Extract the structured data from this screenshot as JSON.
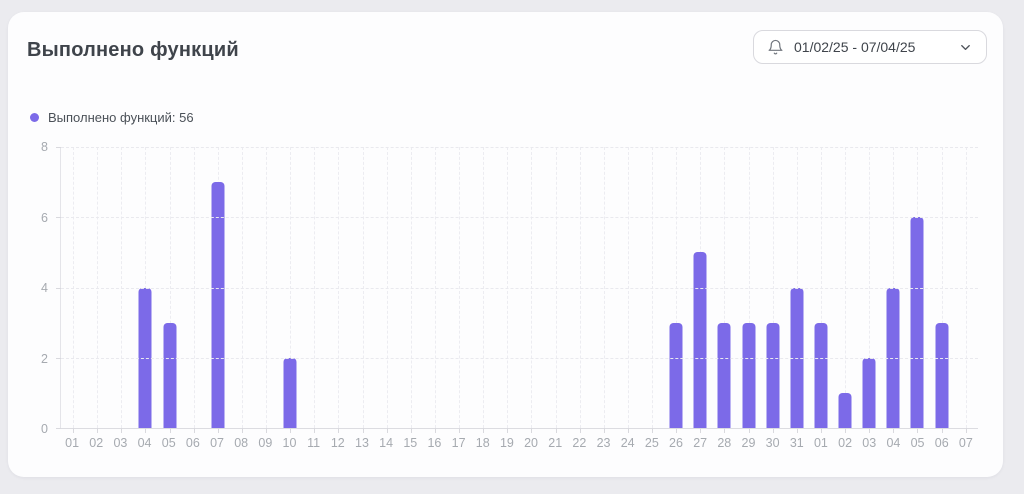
{
  "card": {
    "title": "Выполнено функций",
    "date_picker": {
      "value": "01/02/25 - 07/04/25",
      "icon": "bell-icon",
      "chevron": "chevron-down-icon"
    }
  },
  "legend": {
    "label": "Выполнено функций: 56",
    "dot_color": "#7c6ae8"
  },
  "chart_data": {
    "type": "bar",
    "title": "Выполнено функций",
    "series_name": "Выполнено функций",
    "total": 56,
    "categories": [
      "01",
      "02",
      "03",
      "04",
      "05",
      "06",
      "07",
      "08",
      "09",
      "10",
      "11",
      "12",
      "13",
      "14",
      "15",
      "16",
      "17",
      "18",
      "19",
      "20",
      "21",
      "22",
      "23",
      "24",
      "25",
      "26",
      "27",
      "28",
      "29",
      "30",
      "31",
      "01",
      "02",
      "03",
      "04",
      "05",
      "06",
      "07"
    ],
    "values": [
      0,
      0,
      0,
      4,
      3,
      0,
      7,
      0,
      0,
      2,
      0,
      0,
      0,
      0,
      0,
      0,
      0,
      0,
      0,
      0,
      0,
      0,
      0,
      0,
      0,
      3,
      5,
      3,
      3,
      3,
      4,
      3,
      1,
      2,
      4,
      6,
      3,
      0
    ],
    "xlabel": "",
    "ylabel": "",
    "ylim": [
      0,
      8
    ],
    "yticks": [
      0,
      2,
      4,
      6,
      8
    ],
    "grid": "dashed",
    "bar_color": "#7c6ae8",
    "legend_position": "top-left",
    "date_range": "01/02/25 - 07/04/25"
  },
  "colors": {
    "accent": "#7c6ae8",
    "page_bg": "#ebebef",
    "card_bg": "#fdfdfe",
    "grid": "#e9e9ee",
    "axis_text": "#a6aab0",
    "title_text": "#3f444b"
  }
}
